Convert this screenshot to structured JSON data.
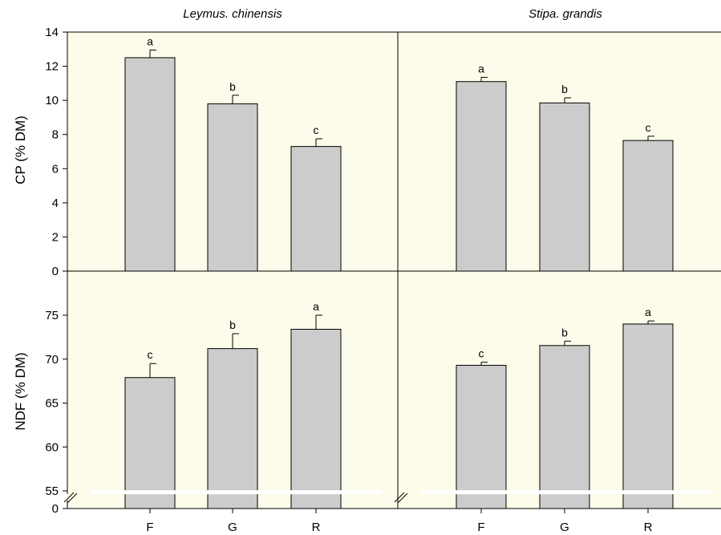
{
  "chart_data": [
    {
      "type": "bar",
      "title": "Leymus. chinensis",
      "ylabel": "CP (% DM)",
      "categories": [
        "F",
        "G",
        "R"
      ],
      "values": [
        12.5,
        9.8,
        7.3
      ],
      "errors": [
        0.45,
        0.5,
        0.45
      ],
      "letters": [
        "a",
        "b",
        "c"
      ],
      "ylim": [
        0,
        14
      ],
      "yticks": [
        0,
        2,
        4,
        6,
        8,
        10,
        12,
        14
      ]
    },
    {
      "type": "bar",
      "title": "Stipa. grandis",
      "ylabel": "CP (% DM)",
      "categories": [
        "F",
        "G",
        "R"
      ],
      "values": [
        11.1,
        9.85,
        7.65
      ],
      "errors": [
        0.25,
        0.3,
        0.25
      ],
      "letters": [
        "a",
        "b",
        "c"
      ],
      "ylim": [
        0,
        14
      ],
      "yticks": [
        0,
        2,
        4,
        6,
        8,
        10,
        12,
        14
      ]
    },
    {
      "type": "bar",
      "title": "",
      "ylabel": "NDF (% DM)",
      "categories": [
        "F",
        "G",
        "R"
      ],
      "values": [
        67.9,
        71.2,
        73.4
      ],
      "errors": [
        1.6,
        1.7,
        1.6
      ],
      "letters": [
        "c",
        "b",
        "a"
      ],
      "ylim": [
        0,
        78
      ],
      "axis_break": [
        0,
        55
      ],
      "yticks": [
        0,
        55,
        60,
        65,
        70,
        75
      ]
    },
    {
      "type": "bar",
      "title": "",
      "ylabel": "NDF (% DM)",
      "categories": [
        "F",
        "G",
        "R"
      ],
      "values": [
        69.3,
        71.55,
        74.0
      ],
      "errors": [
        0.35,
        0.5,
        0.35
      ],
      "letters": [
        "c",
        "b",
        "a"
      ],
      "ylim": [
        0,
        78
      ],
      "axis_break": [
        0,
        55
      ],
      "yticks": [
        0,
        55,
        60,
        65,
        70,
        75
      ]
    }
  ],
  "colors": {
    "panel_background": "#fdfbe9",
    "bar_fill": "#cccccc",
    "bar_stroke": "#000000",
    "break_line": "#ffffff"
  }
}
